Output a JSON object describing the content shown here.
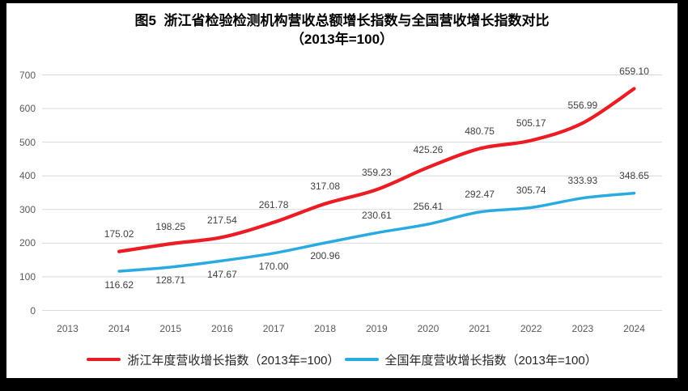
{
  "title": {
    "line1": "图5  浙江省检验检测机构营收总额增长指数与全国营收增长指数对比",
    "line2": "（2013年=100）"
  },
  "chart_data": {
    "type": "line",
    "title": "图5 浙江省检验检测机构营收总额增长指数与全国营收增长指数对比（2013年=100）",
    "x_labels": [
      2013,
      2014,
      2015,
      2016,
      2017,
      2018,
      2019,
      2020,
      2021,
      2022,
      2023,
      2024
    ],
    "ylim": [
      0,
      700
    ],
    "ytick_step": 100,
    "grid": true,
    "legend_position": "bottom",
    "series": [
      {
        "name": "浙江年度营收增长指数（2013年=100）",
        "color": "#EB1C24",
        "start_year": 2014,
        "values": [
          175.02,
          198.25,
          217.54,
          261.78,
          317.08,
          359.23,
          425.26,
          480.75,
          505.17,
          556.99,
          659.1
        ],
        "label_sides": [
          "above",
          "above",
          "above",
          "above",
          "above",
          "above",
          "above",
          "above",
          "above",
          "above",
          "above"
        ]
      },
      {
        "name": "全国年度营收增长指数（2013年=100）",
        "color": "#29ABE2",
        "start_year": 2014,
        "values": [
          116.62,
          128.71,
          147.67,
          170.0,
          200.96,
          230.61,
          256.41,
          292.47,
          305.74,
          333.93,
          348.65
        ],
        "label_sides": [
          "below",
          "below",
          "below",
          "below",
          "below",
          "above",
          "above",
          "above",
          "above",
          "above",
          "above"
        ]
      }
    ]
  },
  "colors": {
    "frame": "#000000",
    "background": "#FFFFFF",
    "grid": "#D9D9D9",
    "tick_label": "#595959",
    "data_label": "#404040",
    "title_text": "#000000",
    "series_red": "#EB1C24",
    "series_blue": "#29ABE2"
  }
}
